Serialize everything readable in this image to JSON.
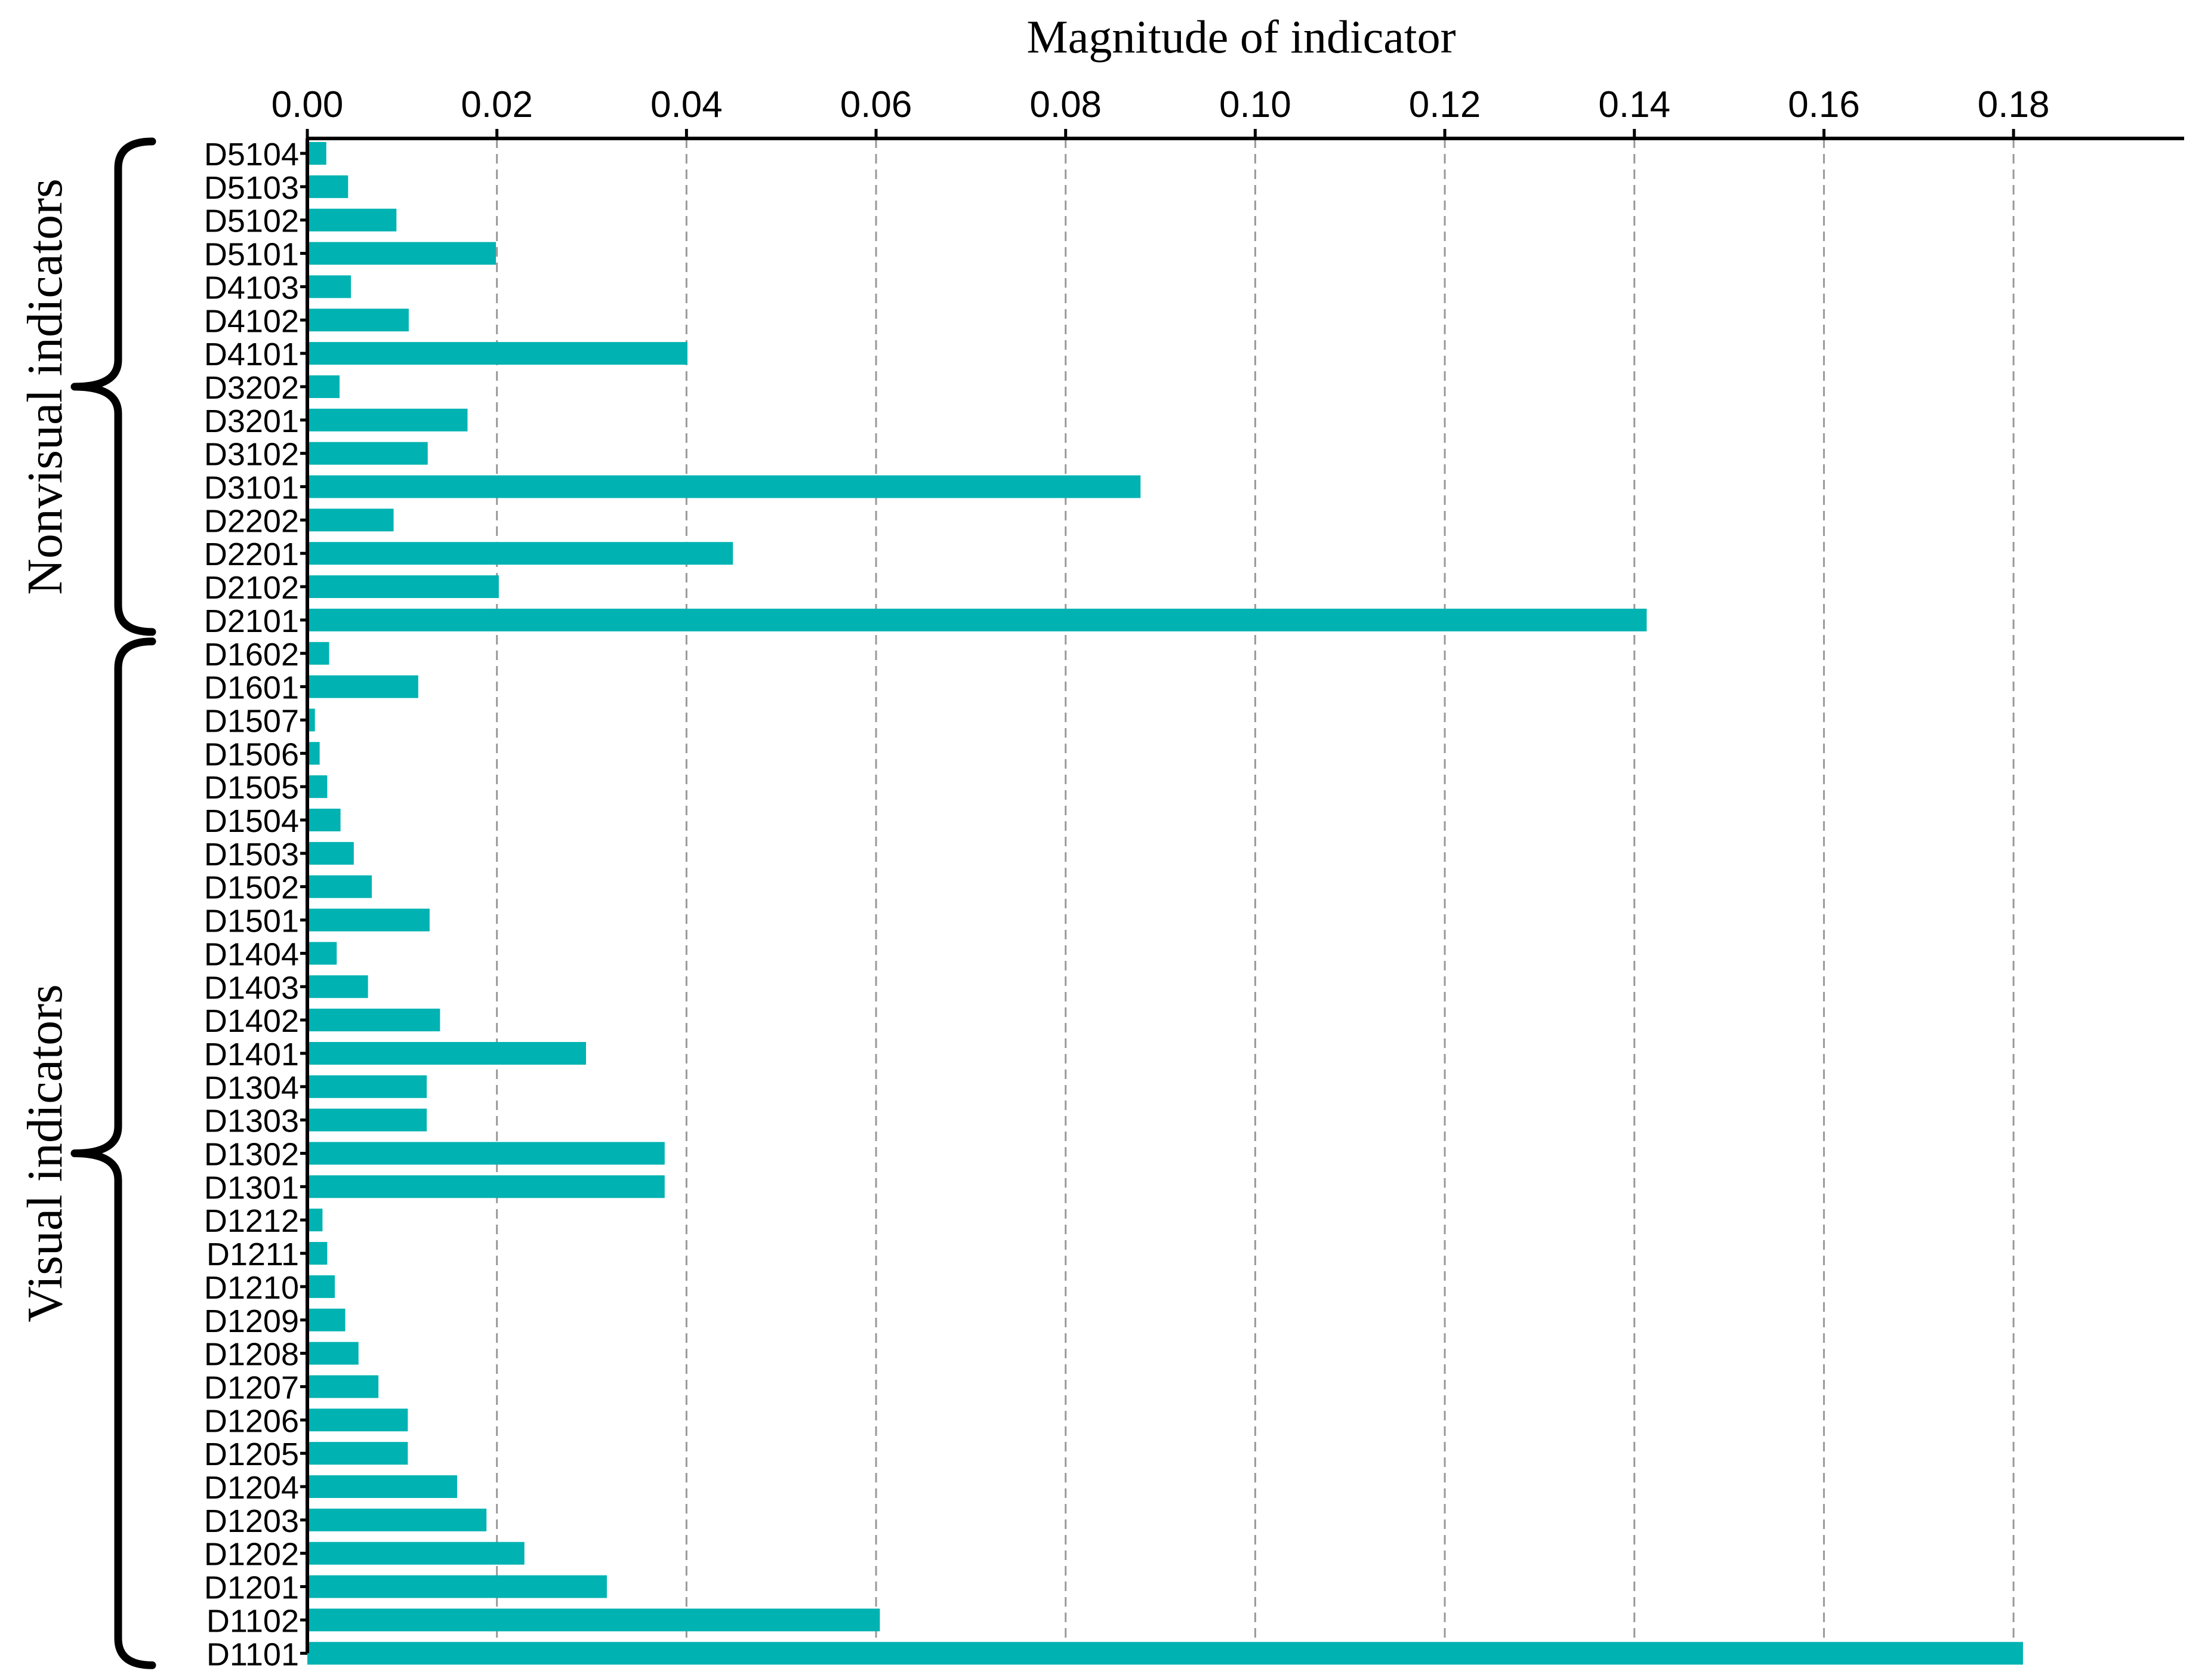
{
  "chart_data": {
    "type": "bar",
    "orientation": "horizontal",
    "title": "",
    "xlabel": "Magnitude of indicator",
    "ylabel": "",
    "xlim": [
      0,
      0.198
    ],
    "x_ticks": [
      "0.00",
      "0.02",
      "0.04",
      "0.06",
      "0.08",
      "0.10",
      "0.12",
      "0.14",
      "0.16",
      "0.18"
    ],
    "x_tick_values": [
      0,
      0.02,
      0.04,
      0.06,
      0.08,
      0.1,
      0.12,
      0.14,
      0.16,
      0.18
    ],
    "x_axis_position": "top",
    "grid": "vertical dashed",
    "bar_color": "#00b2b2",
    "categories": [
      "D5104",
      "D5103",
      "D5102",
      "D5101",
      "D4103",
      "D4102",
      "D4101",
      "D3202",
      "D3201",
      "D3102",
      "D3101",
      "D2202",
      "D2201",
      "D2102",
      "D2101",
      "D1602",
      "D1601",
      "D1507",
      "D1506",
      "D1505",
      "D1504",
      "D1503",
      "D1502",
      "D1501",
      "D1404",
      "D1403",
      "D1402",
      "D1401",
      "D1304",
      "D1303",
      "D1302",
      "D1301",
      "D1212",
      "D1211",
      "D1210",
      "D1209",
      "D1208",
      "D1207",
      "D1206",
      "D1205",
      "D1204",
      "D1203",
      "D1202",
      "D1201",
      "D1102",
      "D1101"
    ],
    "values": [
      0.002,
      0.0043,
      0.0094,
      0.0199,
      0.0046,
      0.0107,
      0.0401,
      0.0034,
      0.0169,
      0.0127,
      0.0879,
      0.0091,
      0.0449,
      0.0202,
      0.1413,
      0.0023,
      0.0117,
      0.0008,
      0.0013,
      0.0021,
      0.0035,
      0.0049,
      0.0068,
      0.0129,
      0.0031,
      0.0064,
      0.014,
      0.0294,
      0.0126,
      0.0126,
      0.0377,
      0.0377,
      0.0016,
      0.0021,
      0.0029,
      0.004,
      0.0054,
      0.0075,
      0.0106,
      0.0106,
      0.0158,
      0.0189,
      0.0229,
      0.0316,
      0.0604,
      0.181
    ],
    "groups": [
      {
        "label": "Nonvisual indicators",
        "first": "D5104",
        "last": "D2101"
      },
      {
        "label": "Visual indicators",
        "first": "D1602",
        "last": "D1101"
      }
    ]
  }
}
